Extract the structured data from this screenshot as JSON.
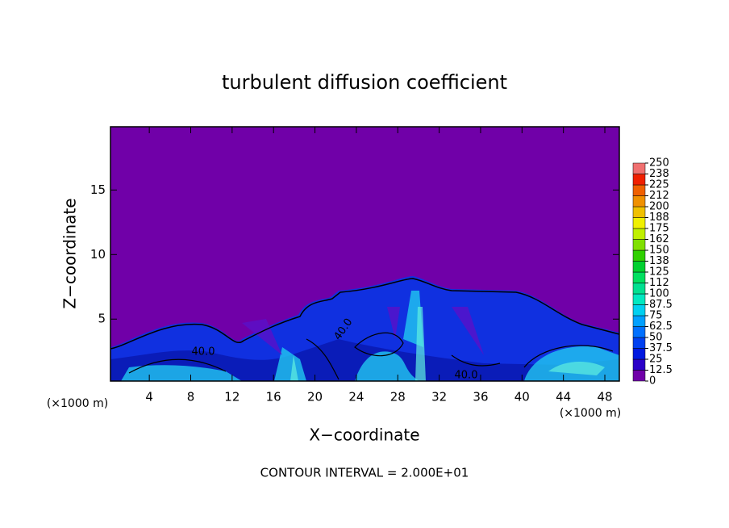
{
  "chart_data": {
    "type": "contour",
    "title": "turbulent diffusion coefficient",
    "xlabel": "X−coordinate",
    "ylabel": "Z−coordinate",
    "x_unit_label": "(×1000 m)",
    "y_unit_label": "(×1000 m)",
    "xlim": [
      0.25,
      49.4
    ],
    "ylim": [
      0.2,
      19.9
    ],
    "xticks": [
      4,
      8,
      12,
      16,
      20,
      24,
      28,
      32,
      36,
      40,
      44,
      48
    ],
    "yticks": [
      5,
      10,
      15
    ],
    "zticks": [
      0,
      12.5,
      25,
      37.5,
      50,
      62.5,
      75,
      87.5,
      100,
      {
        "value": 112.5,
        "label": "112"
      },
      125,
      {
        "value": 137.5,
        "label": "138"
      },
      150,
      {
        "value": 162.5,
        "label": "162"
      },
      175,
      {
        "value": 187.5,
        "label": "188"
      },
      200,
      {
        "value": 212.5,
        "label": "212"
      },
      225,
      {
        "value": 237.5,
        "label": "238"
      },
      250
    ],
    "colorbar_colors": [
      "#7000a8",
      "#2a00c8",
      "#0018e0",
      "#0040f0",
      "#0070ff",
      "#00a0ff",
      "#00d0f0",
      "#00e8c0",
      "#00e090",
      "#00e060",
      "#00d030",
      "#30d000",
      "#80e000",
      "#c0f000",
      "#f0f000",
      "#f0c000",
      "#f09000",
      "#f06000",
      "#f02000",
      "#f07070"
    ],
    "contour_labels": [
      "40.0",
      "40.0",
      "40.0"
    ],
    "footnote": "CONTOUR INTERVAL = 2.000E+01"
  }
}
